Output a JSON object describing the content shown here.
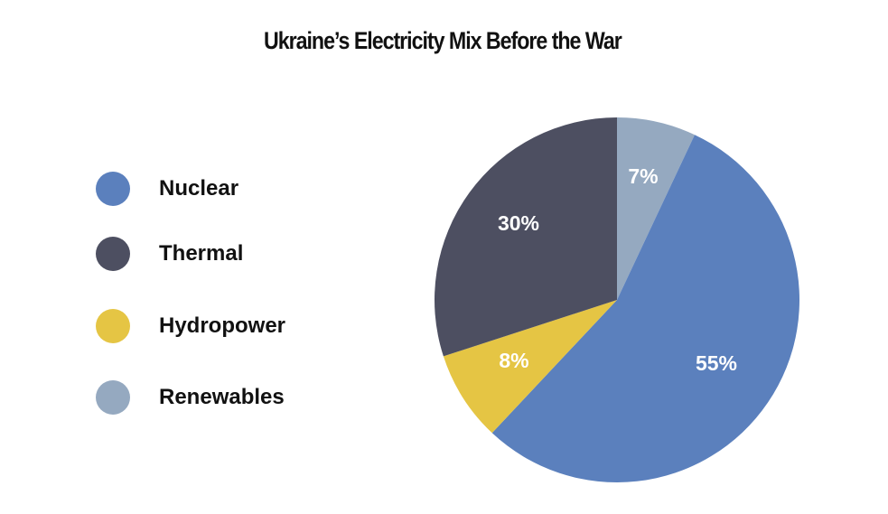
{
  "chart_data": {
    "type": "pie",
    "title": "Ukraine’s Electricity Mix Before the War",
    "legend_position": "left",
    "slices": [
      {
        "name": "Renewables",
        "value": 7,
        "label": "7%",
        "color": "#95A9C0"
      },
      {
        "name": "Nuclear",
        "value": 55,
        "label": "55%",
        "color": "#5B80BD"
      },
      {
        "name": "Hydropower",
        "value": 8,
        "label": "8%",
        "color": "#E5C544"
      },
      {
        "name": "Thermal",
        "value": 30,
        "label": "30%",
        "color": "#4D4F61"
      }
    ],
    "legend_order": [
      "Nuclear",
      "Thermal",
      "Hydropower",
      "Renewables"
    ]
  }
}
